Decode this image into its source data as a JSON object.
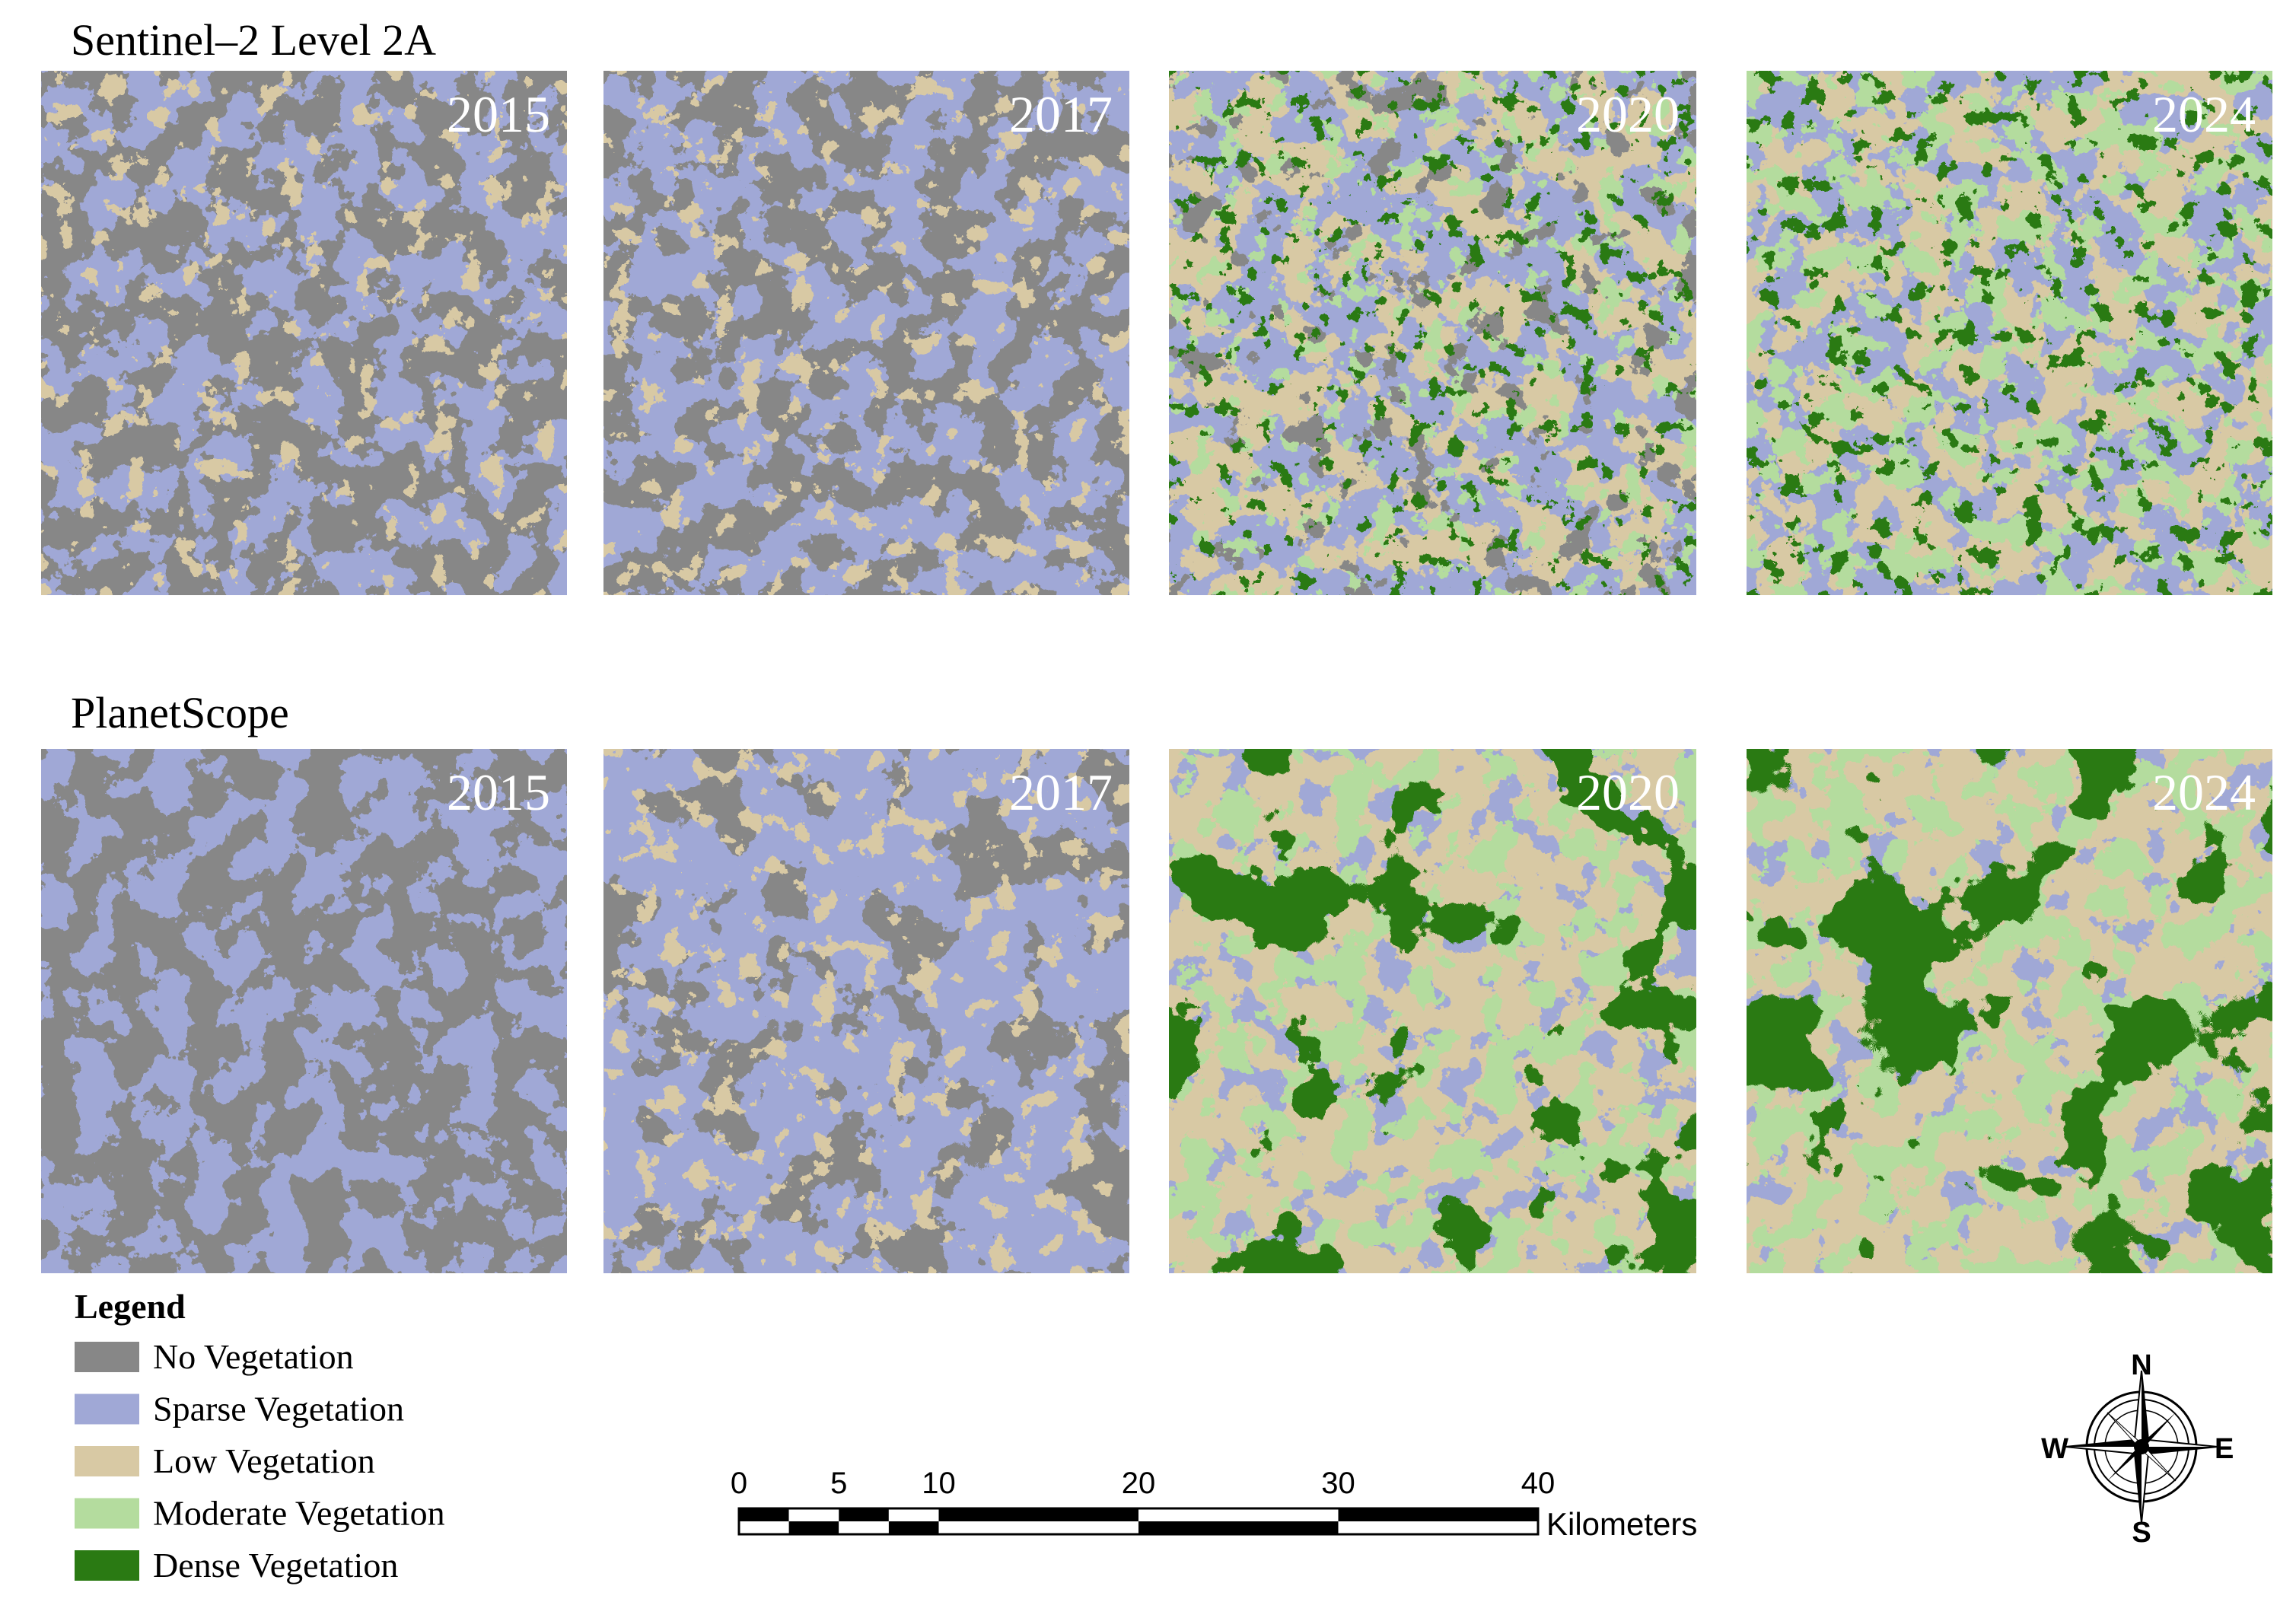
{
  "sections": [
    {
      "title": "Sentinel–2 Level 2A",
      "panels": [
        "2015",
        "2017",
        "2020",
        "2024"
      ]
    },
    {
      "title": "PlanetScope",
      "panels": [
        "2015",
        "2017",
        "2020",
        "2024"
      ]
    }
  ],
  "legend": {
    "title": "Legend",
    "items": [
      {
        "label": "No Vegetation",
        "color": "#878787"
      },
      {
        "label": "Sparse Vegetation",
        "color": "#a0a8d6"
      },
      {
        "label": "Low Vegetation",
        "color": "#d8c9a4"
      },
      {
        "label": "Moderate Vegetation",
        "color": "#b4dc9e"
      },
      {
        "label": "Dense Vegetation",
        "color": "#2a7a13"
      }
    ]
  },
  "scale_bar": {
    "ticks": [
      0,
      5,
      10,
      20,
      30,
      40
    ],
    "unit": "Kilometers"
  },
  "north_arrow": {
    "n": "N",
    "s": "S",
    "w": "W",
    "e": "E"
  }
}
